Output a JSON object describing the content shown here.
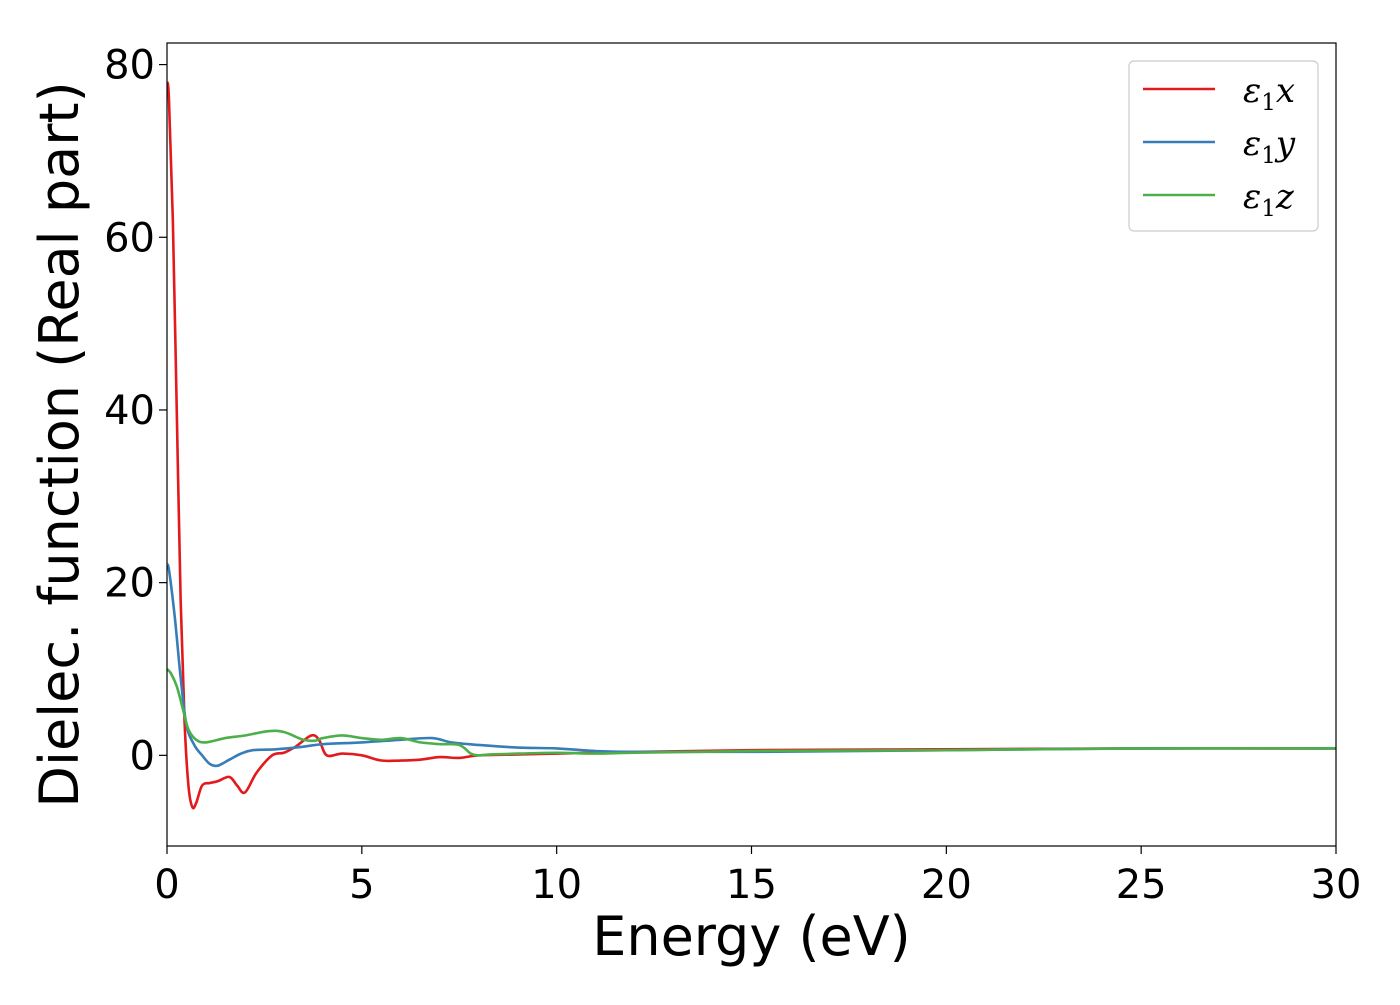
{
  "chart_data": {
    "type": "line",
    "title": "",
    "xlabel": "Energy (eV)",
    "ylabel": "Dielec. function (Real part)",
    "xlim": [
      0,
      30
    ],
    "ylim": [
      -10.5,
      82.5
    ],
    "xticks": [
      0,
      5,
      10,
      15,
      20,
      25,
      30
    ],
    "yticks": [
      0,
      20,
      40,
      60,
      80
    ],
    "grid": false,
    "legend_position": "top-right",
    "series": [
      {
        "name": "ε1x",
        "legend": {
          "base": "ε",
          "sub": "1",
          "suffix": "x"
        },
        "color": "#e31a1c",
        "x": [
          0,
          0.05,
          0.15,
          0.25,
          0.35,
          0.45,
          0.55,
          0.65,
          0.75,
          0.9,
          1.1,
          1.3,
          1.6,
          1.8,
          2.0,
          2.3,
          2.7,
          3.0,
          3.3,
          3.7,
          3.9,
          4.1,
          4.5,
          5.0,
          5.5,
          6.0,
          6.5,
          7.0,
          7.5,
          8.0,
          9.0,
          10.0,
          12.0,
          15.0,
          20.0,
          25.0,
          30.0
        ],
        "y": [
          78,
          76,
          62,
          40,
          18,
          4,
          -3.5,
          -6,
          -5.5,
          -3.5,
          -3.2,
          -3.0,
          -2.5,
          -3.5,
          -4.3,
          -2,
          0,
          0.3,
          1,
          2.3,
          1.8,
          0,
          0.2,
          0,
          -0.6,
          -0.6,
          -0.5,
          -0.2,
          -0.3,
          0,
          0.1,
          0.2,
          0.4,
          0.6,
          0.7,
          0.8,
          0.8
        ]
      },
      {
        "name": "ε1y",
        "legend": {
          "base": "ε",
          "sub": "1",
          "suffix": "y"
        },
        "color": "#377eb8",
        "x": [
          0,
          0.05,
          0.2,
          0.35,
          0.5,
          0.7,
          0.9,
          1.1,
          1.3,
          1.6,
          1.9,
          2.2,
          2.8,
          3.5,
          4.0,
          5.0,
          6.0,
          6.8,
          7.3,
          8.0,
          9.0,
          10.0,
          11.0,
          12.0,
          15.0,
          20.0,
          25.0,
          30.0
        ],
        "y": [
          22,
          21.5,
          16,
          9,
          3.5,
          1.2,
          0,
          -1,
          -1.2,
          -0.5,
          0.2,
          0.6,
          0.7,
          1,
          1.3,
          1.5,
          1.8,
          2,
          1.5,
          1.2,
          0.9,
          0.8,
          0.5,
          0.4,
          0.4,
          0.6,
          0.8,
          0.8
        ]
      },
      {
        "name": "ε1z",
        "legend": {
          "base": "ε",
          "sub": "1",
          "suffix": "z"
        },
        "color": "#4daf4a",
        "x": [
          0,
          0.1,
          0.25,
          0.4,
          0.55,
          0.75,
          1.0,
          1.5,
          2.0,
          2.6,
          3.0,
          3.5,
          3.8,
          4.0,
          4.5,
          5.0,
          5.5,
          6.0,
          6.5,
          7.0,
          7.5,
          7.8,
          8.0,
          8.3,
          9.0,
          10.0,
          11.0,
          12.0,
          15.0,
          20.0,
          25.0,
          30.0
        ],
        "y": [
          10,
          9.5,
          8,
          5.5,
          3,
          1.8,
          1.5,
          2,
          2.3,
          2.8,
          2.7,
          1.8,
          1.7,
          2,
          2.3,
          2,
          1.8,
          2,
          1.5,
          1.3,
          1.2,
          0.2,
          0,
          0.1,
          0.2,
          0.3,
          0.2,
          0.3,
          0.5,
          0.6,
          0.8,
          0.8
        ]
      }
    ]
  }
}
